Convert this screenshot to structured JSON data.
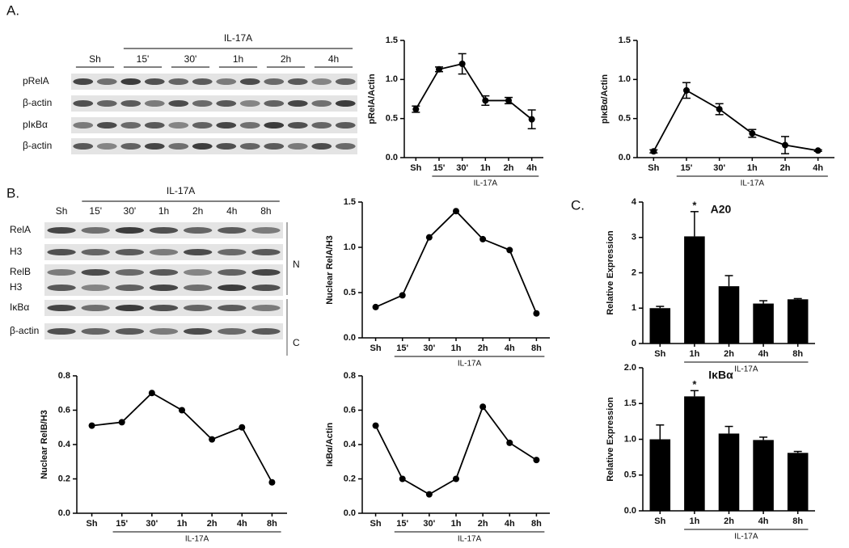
{
  "panel_labels": [
    "A.",
    "B.",
    "C."
  ],
  "blots": [
    {
      "group_label": "IL-17A",
      "lanes": [
        "Sh",
        "15'",
        "30'",
        "1h",
        "2h",
        "4h"
      ],
      "rows": [
        "pRelA",
        "β-actin",
        "pIκBα",
        "β-actin"
      ]
    },
    {
      "group_label": "IL-17A",
      "lanes": [
        "Sh",
        "15'",
        "30'",
        "1h",
        "2h",
        "4h",
        "8h"
      ],
      "rows": [
        "RelA",
        "H3",
        "RelB",
        "H3",
        "IκBα",
        "β-actin"
      ],
      "fractions": [
        "N",
        "C"
      ]
    }
  ],
  "chart_data": [
    {
      "type": "line",
      "y_label": "pRelA/Actin",
      "categories": [
        "Sh",
        "15'",
        "30'",
        "1h",
        "2h",
        "4h"
      ],
      "group_label": "IL-17A",
      "values": [
        0.62,
        1.13,
        1.2,
        0.73,
        0.73,
        0.49
      ],
      "errors": [
        0.04,
        0.03,
        0.13,
        0.06,
        0.04,
        0.12
      ],
      "color": "#000000",
      "ylim": [
        0,
        1.5
      ],
      "yticks": [
        {
          "value": 0,
          "label": "0.0"
        },
        {
          "value": 0.5,
          "label": "0.5"
        },
        {
          "value": 1,
          "label": "1.0"
        },
        {
          "value": 1.5,
          "label": "1.5"
        }
      ]
    },
    {
      "type": "line",
      "y_label": "pIκBα/Actin",
      "categories": [
        "Sh",
        "15'",
        "30'",
        "1h",
        "2h",
        "4h"
      ],
      "group_label": "IL-17A",
      "values": [
        0.08,
        0.86,
        0.62,
        0.31,
        0.16,
        0.09
      ],
      "errors": [
        0.02,
        0.1,
        0.07,
        0.05,
        0.11,
        0.01
      ],
      "color": "#000000",
      "ylim": [
        0,
        1.5
      ],
      "yticks": [
        {
          "value": 0,
          "label": "0.0"
        },
        {
          "value": 0.5,
          "label": "0.5"
        },
        {
          "value": 1,
          "label": "1.0"
        },
        {
          "value": 1.5,
          "label": "1.5"
        }
      ]
    },
    {
      "type": "line",
      "y_label": "Nuclear RelA/H3",
      "categories": [
        "Sh",
        "15'",
        "30'",
        "1h",
        "2h",
        "4h",
        "8h"
      ],
      "group_label": "IL-17A",
      "values": [
        0.34,
        0.47,
        1.11,
        1.4,
        1.09,
        0.97,
        0.27
      ],
      "color": "#000000",
      "ylim": [
        0,
        1.5
      ],
      "yticks": [
        {
          "value": 0,
          "label": "0.0"
        },
        {
          "value": 0.5,
          "label": "0.5"
        },
        {
          "value": 1,
          "label": "1.0"
        },
        {
          "value": 1.5,
          "label": "1.5"
        }
      ]
    },
    {
      "type": "line",
      "y_label": "Nuclear RelB/H3",
      "categories": [
        "Sh",
        "15'",
        "30'",
        "1h",
        "2h",
        "4h",
        "8h"
      ],
      "group_label": "IL-17A",
      "values": [
        0.51,
        0.53,
        0.7,
        0.6,
        0.43,
        0.5,
        0.18
      ],
      "color": "#000000",
      "ylim": [
        0,
        0.8
      ],
      "yticks": [
        {
          "value": 0,
          "label": "0.0"
        },
        0.2,
        0.4,
        0.6,
        0.8
      ]
    },
    {
      "type": "line",
      "y_label": "IκBα/Actin",
      "categories": [
        "Sh",
        "15'",
        "30'",
        "1h",
        "2h",
        "4h",
        "8h"
      ],
      "group_label": "IL-17A",
      "values": [
        0.51,
        0.2,
        0.11,
        0.2,
        0.62,
        0.41,
        0.31
      ],
      "color": "#000000",
      "ylim": [
        0,
        0.8
      ],
      "yticks": [
        {
          "value": 0,
          "label": "0.0"
        },
        0.2,
        0.4,
        0.6,
        0.8
      ]
    },
    {
      "type": "bar",
      "title": "A20",
      "y_label": "Relative Expression",
      "categories": [
        "Sh",
        "1h",
        "2h",
        "4h",
        "8h"
      ],
      "group_label": "IL-17A",
      "values": [
        1.0,
        3.03,
        1.62,
        1.13,
        1.25
      ],
      "errors": [
        0.05,
        0.7,
        0.3,
        0.08,
        0.02
      ],
      "annotations": [
        {
          "text": "*",
          "x": "1h"
        }
      ],
      "color": "#000000",
      "ylim": [
        0,
        4
      ],
      "yticks": [
        0,
        1,
        2,
        3,
        4
      ]
    },
    {
      "type": "bar",
      "title": "IκBα",
      "y_label": "Relative Expression",
      "categories": [
        "Sh",
        "1h",
        "2h",
        "4h",
        "8h"
      ],
      "group_label": "IL-17A",
      "values": [
        1.0,
        1.6,
        1.08,
        0.99,
        0.81
      ],
      "errors": [
        0.2,
        0.08,
        0.1,
        0.04,
        0.02
      ],
      "annotations": [
        {
          "text": "*",
          "x": "1h"
        }
      ],
      "color": "#000000",
      "ylim": [
        0,
        2
      ],
      "yticks": [
        {
          "value": 0,
          "label": "0.0"
        },
        {
          "value": 0.5,
          "label": "0.5"
        },
        {
          "value": 1,
          "label": "1.0"
        },
        {
          "value": 1.5,
          "label": "1.5"
        },
        {
          "value": 2,
          "label": "2.0"
        }
      ]
    }
  ]
}
